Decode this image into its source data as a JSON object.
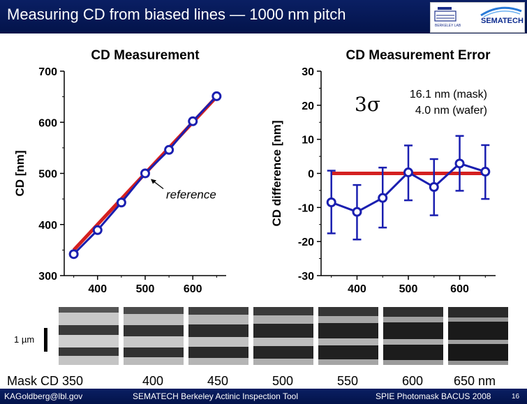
{
  "slide": {
    "title": "Measuring CD from biased lines — 1000 nm pitch",
    "scale_label": "1 µm",
    "mask_labels": [
      "Mask CD 350",
      "400",
      "450",
      "500",
      "550",
      "600",
      "650 nm"
    ],
    "footer": {
      "author": "KAGoldberg@lbl.gov",
      "center": "SEMATECH Berkeley Actinic Inspection Tool",
      "conference": "SPIE Photomask BACUS 2008",
      "page": "16"
    },
    "logos": {
      "sematech": "SEMATECH",
      "berkeley": "BERKELEY LAB"
    }
  },
  "colors": {
    "header_bg": "#03134a",
    "series_blue": "#1a1fb0",
    "reference_red": "#d42020"
  },
  "chart_data": [
    {
      "type": "line",
      "title": "CD Measurement",
      "xlabel": "",
      "ylabel": "CD [nm]",
      "xlim": [
        330,
        670
      ],
      "ylim": [
        300,
        700
      ],
      "xticks": [
        400,
        500,
        600
      ],
      "yticks": [
        300,
        400,
        500,
        600,
        700
      ],
      "annotation": "reference",
      "series": [
        {
          "name": "",
          "color": "#d42020",
          "x": [
            350,
            650
          ],
          "y": [
            350,
            650
          ]
        },
        {
          "name": "",
          "color": "#1a1fb0",
          "x": [
            350,
            400,
            450,
            500,
            550,
            600,
            650
          ],
          "y": [
            342,
            389,
            443,
            500,
            546,
            602,
            651
          ]
        }
      ]
    },
    {
      "type": "line",
      "title": "CD Measurement Error",
      "xlabel": "",
      "ylabel": "CD difference [nm]",
      "xlim": [
        330,
        670
      ],
      "ylim": [
        -30,
        30
      ],
      "xticks": [
        400,
        500,
        600
      ],
      "yticks": [
        -30,
        -20,
        -10,
        0,
        10,
        20,
        30
      ],
      "annotation": {
        "symbol": "3σ",
        "line1": "16.1 nm (mask)",
        "line2": "4.0 nm (wafer)"
      },
      "series": [
        {
          "name": "",
          "color": "#d42020",
          "x": [
            350,
            650
          ],
          "y": [
            0,
            0
          ]
        },
        {
          "name": "",
          "color": "#1a1fb0",
          "x": [
            350,
            400,
            450,
            500,
            550,
            600,
            650
          ],
          "y": [
            -8.5,
            -11.3,
            -7.2,
            0.3,
            -4.0,
            2.9,
            0.5
          ],
          "err_low": [
            -17.6,
            -19.4,
            -15.9,
            -7.9,
            -12.3,
            -5.1,
            -7.5
          ],
          "err_high": [
            0.8,
            -3.4,
            1.7,
            8.2,
            4.2,
            11.0,
            8.3
          ]
        }
      ]
    }
  ]
}
